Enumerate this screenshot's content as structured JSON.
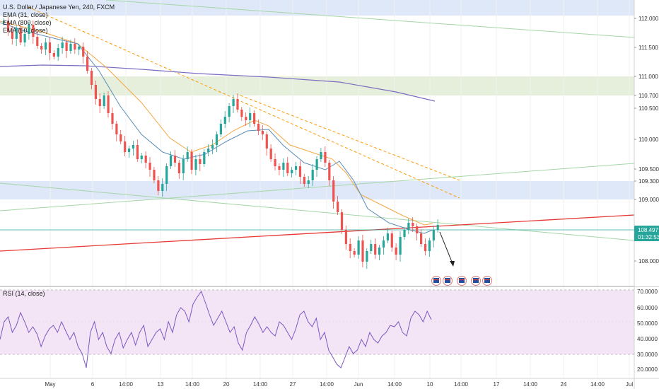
{
  "header": {
    "title": "U.S. Dollar / Japanese Yen, 240, FXCM",
    "indicators": [
      "EMA (31, close)",
      "EMA (800, close)",
      "EMA (50, close)"
    ]
  },
  "price_axis": {
    "ticks": [
      "112.000",
      "111.500",
      "111.000",
      "110.700",
      "110.500",
      "110.000",
      "109.500",
      "109.300",
      "109.000",
      "108.000"
    ],
    "last_price": "108.497",
    "countdown": "01:32:53"
  },
  "rsi": {
    "label": "RSI (14, close)",
    "ticks": [
      "70.0000",
      "60.0000",
      "50.0000",
      "40.0000",
      "30.0000",
      "20.0000"
    ]
  },
  "time_axis": {
    "labels": [
      "May",
      "6",
      "14:00",
      "13",
      "14:00",
      "20",
      "14:00",
      "27",
      "14:00",
      "Jun",
      "14:00",
      "10",
      "14:00",
      "17",
      "14:00",
      "24",
      "14:00",
      "Jul"
    ]
  },
  "colors": {
    "candle_up": "#26a69a",
    "candle_down": "#ef5350",
    "zone": "#dfe8f8",
    "zone_green": "#e5efdb",
    "ema31": "#5b8db8",
    "ema50": "#f5a742",
    "ema800": "#7c6cc2",
    "trend_red": "#e53935",
    "trend_green": "#a5d6a7",
    "trend_orange": "#ff9800",
    "rsi_line": "#7e57c2",
    "rsi_band": "#f3e5f5"
  },
  "event_badges": [
    "flag-icon",
    "flag-icon",
    "flag-icon",
    "flag-icon",
    "flag-icon",
    "flag-icon"
  ]
}
